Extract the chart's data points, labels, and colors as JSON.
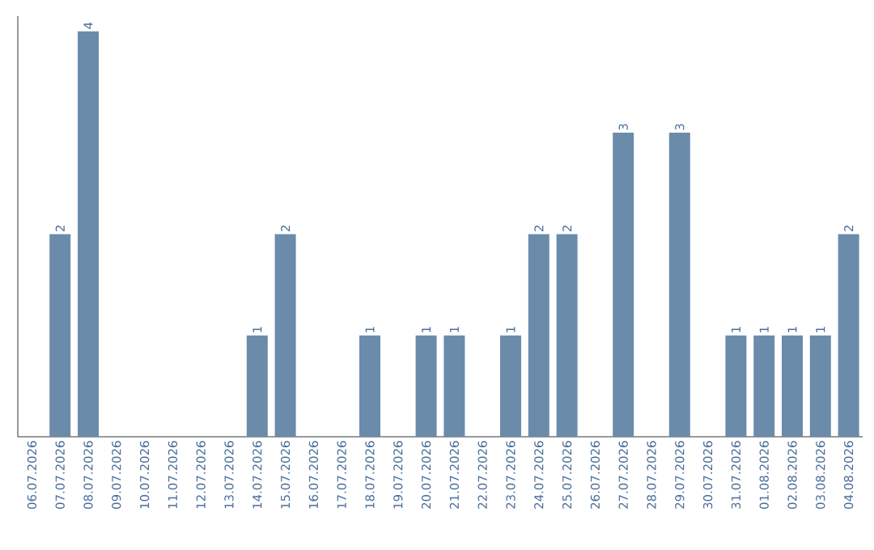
{
  "chart_data": {
    "type": "bar",
    "categories": [
      "06.07.2026",
      "07.07.2026",
      "08.07.2026",
      "09.07.2026",
      "10.07.2026",
      "11.07.2026",
      "12.07.2026",
      "13.07.2026",
      "14.07.2026",
      "15.07.2026",
      "16.07.2026",
      "17.07.2026",
      "18.07.2026",
      "19.07.2026",
      "20.07.2026",
      "21.07.2026",
      "22.07.2026",
      "23.07.2026",
      "24.07.2026",
      "25.07.2026",
      "26.07.2026",
      "27.07.2026",
      "28.07.2026",
      "29.07.2026",
      "30.07.2026",
      "31.07.2026",
      "01.08.2026",
      "02.08.2026",
      "03.08.2026",
      "04.08.2026"
    ],
    "values": [
      0,
      2,
      4,
      0,
      0,
      0,
      0,
      0,
      1,
      2,
      0,
      0,
      1,
      0,
      1,
      1,
      0,
      1,
      2,
      2,
      0,
      3,
      0,
      3,
      0,
      1,
      1,
      1,
      1,
      2
    ],
    "value_labels": [
      null,
      "2",
      "4",
      null,
      null,
      null,
      null,
      null,
      "1",
      "2",
      null,
      null,
      "1",
      null,
      "1",
      "1",
      null,
      "1",
      "2",
      "2",
      null,
      "3",
      null,
      "3",
      null,
      "1",
      "1",
      "1",
      "1",
      "2"
    ],
    "color": "#6b8bab",
    "ylim": [
      0,
      4.15
    ],
    "tick_labels": "x"
  }
}
